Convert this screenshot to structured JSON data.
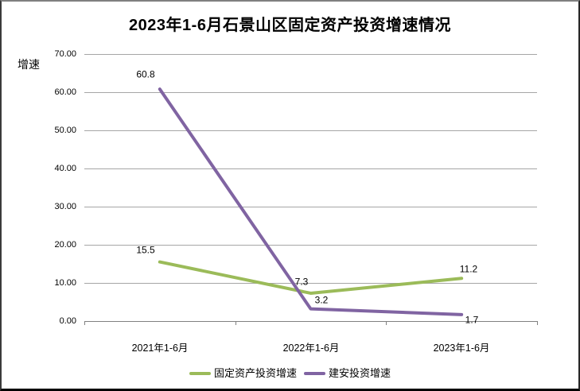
{
  "chart_data": {
    "type": "line",
    "title": "2023年1-6月石景山区固定资产投资增速情况",
    "ylabel": "增速",
    "xlabel": "",
    "categories": [
      "2021年1-6月",
      "2022年1-6月",
      "2023年1-6月"
    ],
    "series": [
      {
        "name": "固定资产投资增速",
        "color": "#9BBB59",
        "values": [
          15.5,
          7.3,
          11.2
        ],
        "labels": [
          "15.5",
          "7.3",
          "11.2"
        ]
      },
      {
        "name": "建安投资增速",
        "color": "#8064A2",
        "values": [
          60.8,
          3.2,
          1.7
        ],
        "labels": [
          "60.8",
          "3.2",
          "1.7"
        ]
      }
    ],
    "ylim": [
      0,
      70
    ],
    "y_tick_step": 10,
    "y_tick_labels": [
      "70.00",
      "60.00",
      "50.00",
      "40.00",
      "30.00",
      "20.00",
      "10.00",
      "0.00"
    ],
    "grid": true,
    "data_labels": true,
    "legend_position": "bottom",
    "colors": {
      "gridline": "#A6A6A6",
      "axis": "#808080",
      "text": "#000000",
      "background": "#FFFFFF"
    }
  }
}
